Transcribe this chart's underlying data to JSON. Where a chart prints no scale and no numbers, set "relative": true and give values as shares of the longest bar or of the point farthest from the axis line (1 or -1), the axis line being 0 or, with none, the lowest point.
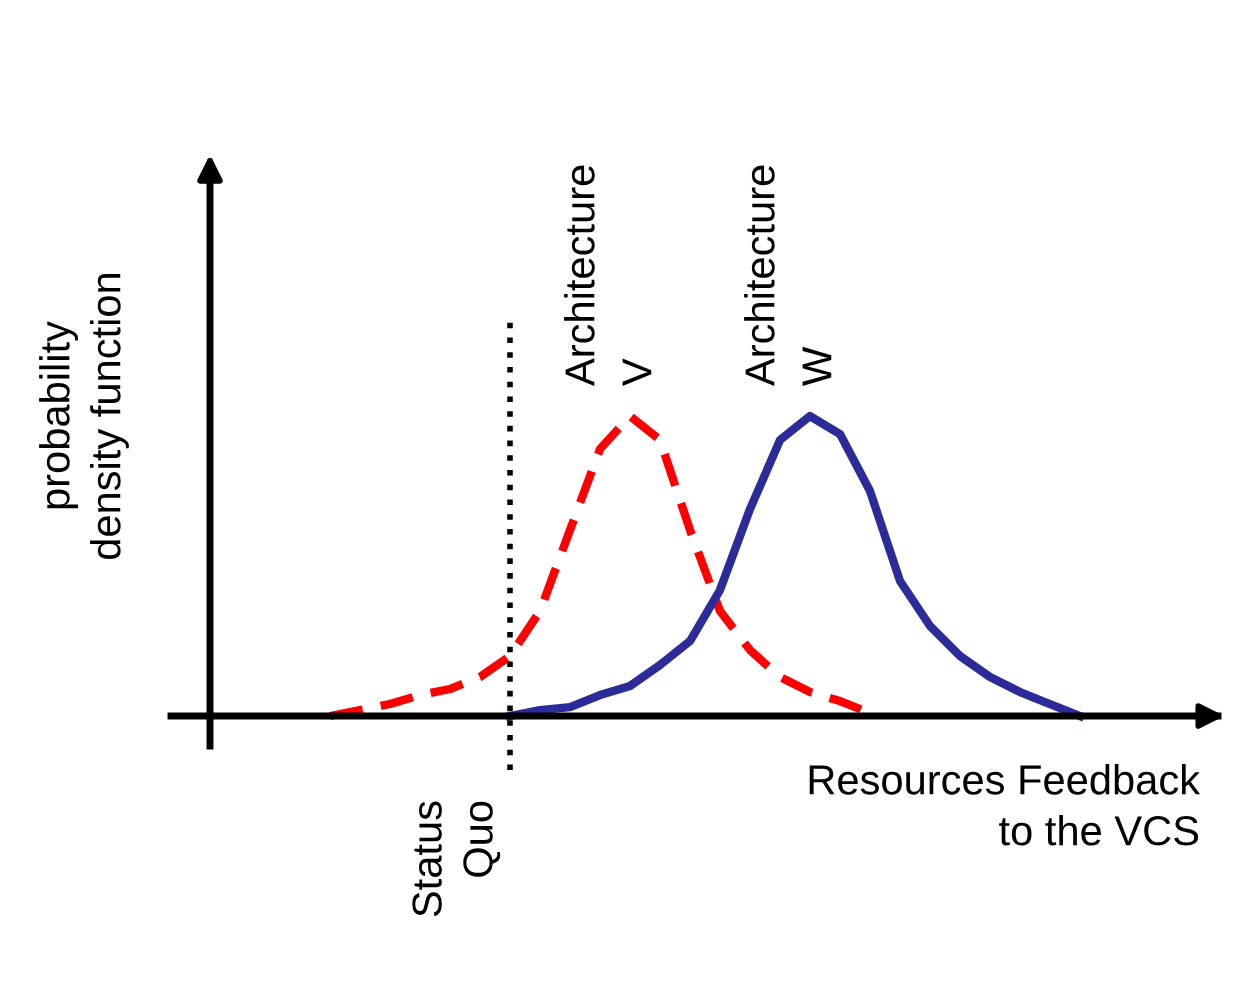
{
  "chart_data": {
    "type": "line",
    "relative": true,
    "xlabel": "Resources Feedback\nto the VCS",
    "ylabel": "probability\ndensity function",
    "categories": [
      null,
      null,
      null,
      null,
      null,
      null,
      null,
      null,
      null,
      null,
      null,
      null,
      null,
      null,
      null,
      null,
      null,
      null,
      null,
      null,
      null,
      null,
      null,
      null,
      null,
      null
    ],
    "series": [
      {
        "name": "Architecture\nV",
        "color": "#ff0000",
        "line_style": "dashed",
        "values": [
          0,
          0.02,
          0.04,
          0.07,
          0.09,
          0.13,
          0.2,
          0.35,
          0.62,
          0.89,
          1.0,
          0.92,
          0.62,
          0.35,
          0.22,
          0.13,
          0.08,
          0.05,
          0.01,
          null,
          null,
          null,
          null,
          null,
          null,
          null
        ]
      },
      {
        "name": "Architecture\nW",
        "color": "#2b2b9a",
        "line_style": "solid",
        "values": [
          null,
          null,
          null,
          null,
          null,
          null,
          0,
          0.02,
          0.03,
          0.07,
          0.1,
          0.17,
          0.25,
          0.42,
          0.69,
          0.92,
          1.0,
          0.94,
          0.75,
          0.45,
          0.3,
          0.2,
          0.13,
          0.08,
          0.04,
          0
        ]
      }
    ],
    "annotations": [
      "Status\nQuo"
    ]
  }
}
